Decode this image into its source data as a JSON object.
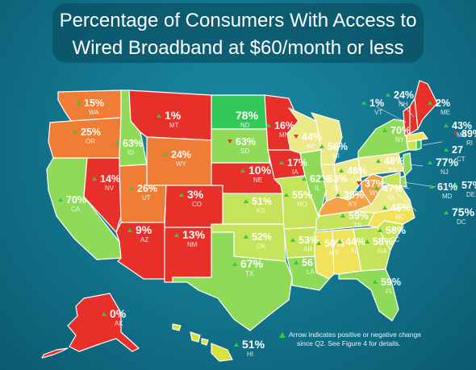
{
  "title_line1": "Percentage of Consumers With Access to",
  "title_line2": "Wired Broadband at $60/month or less",
  "note_line1": "Arrow indicates positive or negative change",
  "note_line2": "since Q2.  See Figure 4 for details.",
  "colors": {
    "red": "#e8302a",
    "orange": "#f07d35",
    "orangeL": "#f3a24a",
    "yellow": "#f1e25c",
    "yellowL": "#ece989",
    "lime": "#c6e35c",
    "green": "#8fda59",
    "greenD": "#33c95a",
    "background": "#137890"
  },
  "states": [
    {
      "abbr": "WA",
      "pct": "15%",
      "arrow": "up"
    },
    {
      "abbr": "OR",
      "pct": "25%",
      "arrow": "up"
    },
    {
      "abbr": "CA",
      "pct": "70%",
      "arrow": "up"
    },
    {
      "abbr": "ID",
      "pct": "63%",
      "arrow": "up"
    },
    {
      "abbr": "NV",
      "pct": "14%",
      "arrow": "up"
    },
    {
      "abbr": "MT",
      "pct": "1%",
      "arrow": "up"
    },
    {
      "abbr": "WY",
      "pct": "24%",
      "arrow": "up"
    },
    {
      "abbr": "UT",
      "pct": "26%",
      "arrow": "up"
    },
    {
      "abbr": "AZ",
      "pct": "9%",
      "arrow": "up"
    },
    {
      "abbr": "CO",
      "pct": "3%",
      "arrow": "up"
    },
    {
      "abbr": "NM",
      "pct": "13%",
      "arrow": "up"
    },
    {
      "abbr": "ND",
      "pct": "78%",
      "arrow": "up"
    },
    {
      "abbr": "SD",
      "pct": "63%",
      "arrow": "down"
    },
    {
      "abbr": "NE",
      "pct": "10%",
      "arrow": "up"
    },
    {
      "abbr": "KS",
      "pct": "51%",
      "arrow": "up"
    },
    {
      "abbr": "OK",
      "pct": "52%",
      "arrow": "up"
    },
    {
      "abbr": "TX",
      "pct": "67%",
      "arrow": "up"
    },
    {
      "abbr": "MN",
      "pct": "16%",
      "arrow": "up"
    },
    {
      "abbr": "IA",
      "pct": "17%",
      "arrow": "up"
    },
    {
      "abbr": "MO",
      "pct": "55%",
      "arrow": "up"
    },
    {
      "abbr": "AR",
      "pct": "53%",
      "arrow": "up"
    },
    {
      "abbr": "LA",
      "pct": "56",
      "arrow": "up"
    },
    {
      "abbr": "WI",
      "pct": "44%",
      "arrow": "down"
    },
    {
      "abbr": "IL",
      "pct": "62%",
      "arrow": "up"
    },
    {
      "abbr": "MI",
      "pct": "56%",
      "arrow": "up"
    },
    {
      "abbr": "IN",
      "pct": "53%",
      "arrow": "up"
    },
    {
      "abbr": "OH",
      "pct": "48%",
      "arrow": "up"
    },
    {
      "abbr": "KY",
      "pct": "39%",
      "arrow": "up"
    },
    {
      "abbr": "TN",
      "pct": "59%",
      "arrow": "up"
    },
    {
      "abbr": "MS",
      "pct": "50%",
      "arrow": "up"
    },
    {
      "abbr": "AL",
      "pct": "44%",
      "arrow": "up"
    },
    {
      "abbr": "GA",
      "pct": "58%",
      "arrow": "up"
    },
    {
      "abbr": "FL",
      "pct": "59%",
      "arrow": "up"
    },
    {
      "abbr": "SC",
      "pct": "58%",
      "arrow": "up"
    },
    {
      "abbr": "NC",
      "pct": "45%",
      "arrow": "up"
    },
    {
      "abbr": "VA",
      "pct": "47%",
      "arrow": "up"
    },
    {
      "abbr": "WV",
      "pct": "37%",
      "arrow": "down"
    },
    {
      "abbr": "PA",
      "pct": "48%",
      "arrow": "up"
    },
    {
      "abbr": "NY",
      "pct": "70%",
      "arrow": "up"
    },
    {
      "abbr": "VT",
      "pct": "1%",
      "arrow": "up"
    },
    {
      "abbr": "NH",
      "pct": "24%",
      "arrow": "up"
    },
    {
      "abbr": "ME",
      "pct": "2%",
      "arrow": "up"
    },
    {
      "abbr": "MA",
      "pct": "43%",
      "arrow": "up"
    },
    {
      "abbr": "RI",
      "pct": "89%",
      "arrow": "down"
    },
    {
      "abbr": "CT",
      "pct": "27",
      "arrow": "up"
    },
    {
      "abbr": "NJ",
      "pct": "77%",
      "arrow": "up"
    },
    {
      "abbr": "DE",
      "pct": "57%",
      "arrow": "up"
    },
    {
      "abbr": "MD",
      "pct": "61%",
      "arrow": "up"
    },
    {
      "abbr": "DC",
      "pct": "75%",
      "arrow": "up"
    },
    {
      "abbr": "AK",
      "pct": "0%",
      "arrow": "up"
    },
    {
      "abbr": "HI",
      "pct": "51%",
      "arrow": "up"
    }
  ]
}
